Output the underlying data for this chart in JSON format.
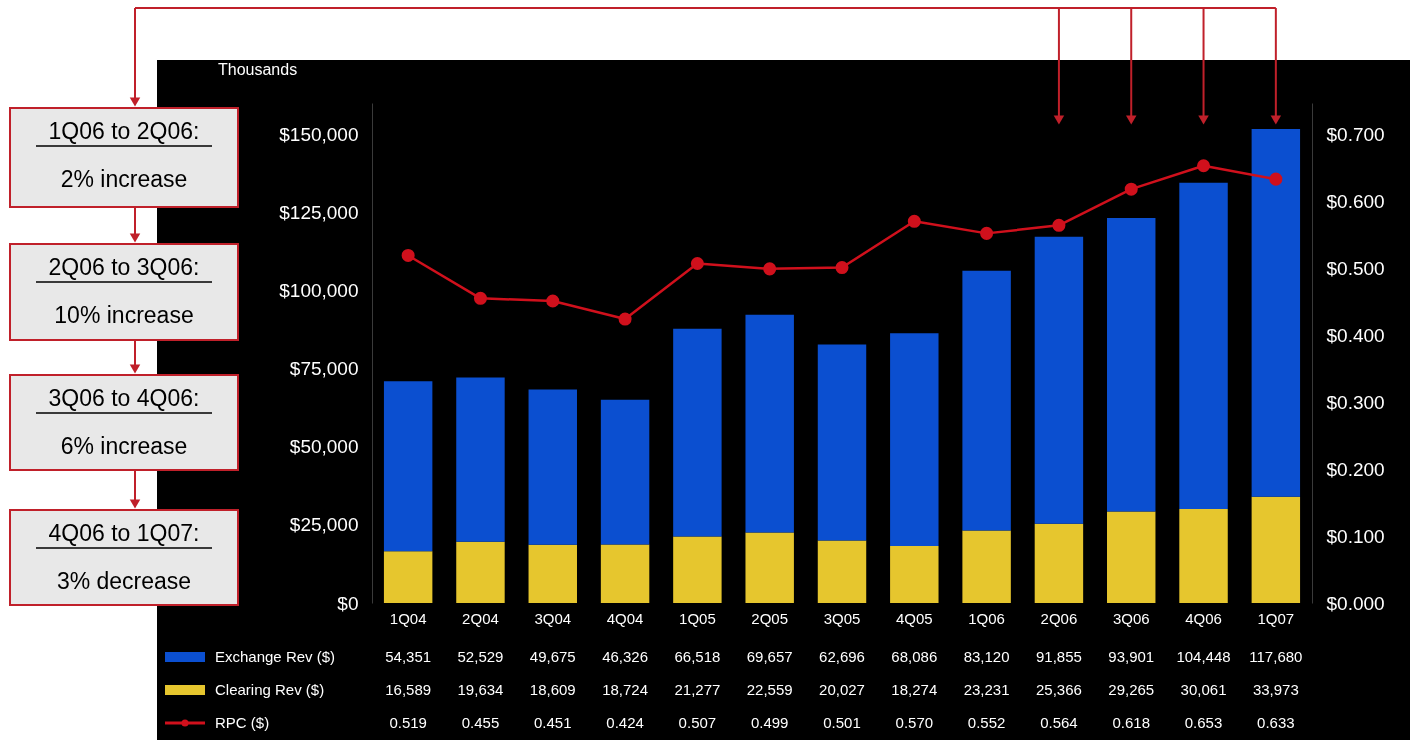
{
  "chart_data": {
    "type": "bar",
    "stacked": true,
    "ylabel": "Thousands",
    "categories": [
      "1Q04",
      "2Q04",
      "3Q04",
      "4Q04",
      "1Q05",
      "2Q05",
      "3Q05",
      "4Q05",
      "1Q06",
      "2Q06",
      "3Q06",
      "4Q06",
      "1Q07"
    ],
    "series": [
      {
        "name": "Clearing Rev ($)",
        "color": "#e6c62e",
        "values": [
          16589,
          19634,
          18609,
          18724,
          21277,
          22559,
          20027,
          18274,
          23231,
          25366,
          29265,
          30061,
          33973
        ],
        "value_labels": [
          "16,589",
          "19,634",
          "18,609",
          "18,724",
          "21,277",
          "22,559",
          "20,027",
          "18,274",
          "23,231",
          "25,366",
          "29,265",
          "30,061",
          "33,973"
        ]
      },
      {
        "name": "Exchange Rev ($)",
        "color": "#0b4fd0",
        "values": [
          54351,
          52529,
          49675,
          46326,
          66518,
          69657,
          62696,
          68086,
          83120,
          91855,
          93901,
          104448,
          117680
        ],
        "value_labels": [
          "54,351",
          "52,529",
          "49,675",
          "46,326",
          "66,518",
          "69,657",
          "62,696",
          "68,086",
          "83,120",
          "91,855",
          "93,901",
          "104,448",
          "117,680"
        ]
      },
      {
        "name": "RPC ($)",
        "type": "line",
        "axis": "y2",
        "color": "#d0101c",
        "values": [
          0.519,
          0.455,
          0.451,
          0.424,
          0.507,
          0.499,
          0.501,
          0.57,
          0.552,
          0.564,
          0.618,
          0.653,
          0.633
        ],
        "value_labels": [
          "0.519",
          "0.455",
          "0.451",
          "0.424",
          "0.507",
          "0.499",
          "0.501",
          "0.570",
          "0.552",
          "0.564",
          "0.618",
          "0.653",
          "0.633"
        ]
      }
    ],
    "ylim": [
      0,
      160000
    ],
    "yticks": [
      {
        "value": 0,
        "label": "$0"
      },
      {
        "value": 25000,
        "label": "$25,000"
      },
      {
        "value": 50000,
        "label": "$50,000"
      },
      {
        "value": 75000,
        "label": "$75,000"
      },
      {
        "value": 100000,
        "label": "$100,000"
      },
      {
        "value": 125000,
        "label": "$125,000"
      },
      {
        "value": 150000,
        "label": "$150,000"
      }
    ],
    "y2lim": [
      0,
      0.7467
    ],
    "y2ticks": [
      {
        "value": 0,
        "label": "$0.000"
      },
      {
        "value": 0.1,
        "label": "$0.100"
      },
      {
        "value": 0.2,
        "label": "$0.200"
      },
      {
        "value": 0.3,
        "label": "$0.300"
      },
      {
        "value": 0.4,
        "label": "$0.400"
      },
      {
        "value": 0.5,
        "label": "$0.500"
      },
      {
        "value": 0.6,
        "label": "$0.600"
      },
      {
        "value": 0.7,
        "label": "$0.700"
      }
    ],
    "annotations": [
      "1Q06 to 2Q06:\n2% increase",
      "2Q06 to 3Q06:\n10% increase",
      "3Q06 to 4Q06:\n6% increase",
      "4Q06 to 1Q07:\n3% decrease"
    ],
    "legend": "bottom",
    "grid": false,
    "marker": "circle",
    "line_style": "solid"
  }
}
